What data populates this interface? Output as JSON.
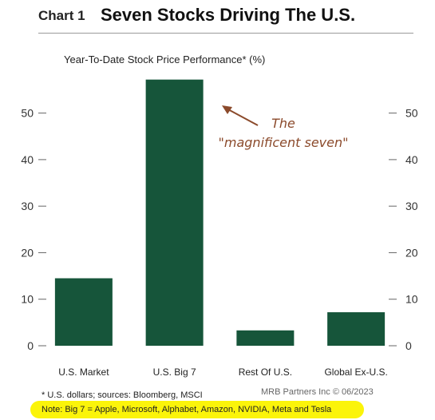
{
  "header": {
    "chart_label": "Chart 1",
    "title": "Seven Stocks Driving The U.S."
  },
  "colors": {
    "bar": "#16553a",
    "annotation": "#8b4a2b",
    "highlight": "#fbf40a",
    "axis": "#666666"
  },
  "chart_data": {
    "type": "bar",
    "title": "Seven Stocks Driving The U.S.",
    "subtitle": "Year-To-Date Stock Price Performance* (%)",
    "categories": [
      "U.S. Market",
      "U.S. Big 7",
      "Rest Of U.S.",
      "Global Ex-U.S."
    ],
    "values": [
      14.5,
      57.2,
      3.3,
      7.2
    ],
    "ylim": [
      0,
      58
    ],
    "yticks": [
      0,
      10,
      20,
      30,
      40,
      50
    ],
    "ytick_labels": [
      "0",
      "10",
      "20",
      "30",
      "40",
      "50"
    ],
    "left_axis": true,
    "right_axis": true,
    "grid": false,
    "annotation": {
      "line1": "The",
      "line2": "\"magnificent seven\"",
      "target_category": "U.S. Big 7"
    }
  },
  "footer": {
    "footnote": "* U.S. dollars; sources: Bloomberg, MSCI",
    "source": "MRB Partners Inc © 06/2023",
    "note": "Note: Big 7 = Apple, Microsoft, Alphabet, Amazon, NVIDIA, Meta and Tesla"
  }
}
